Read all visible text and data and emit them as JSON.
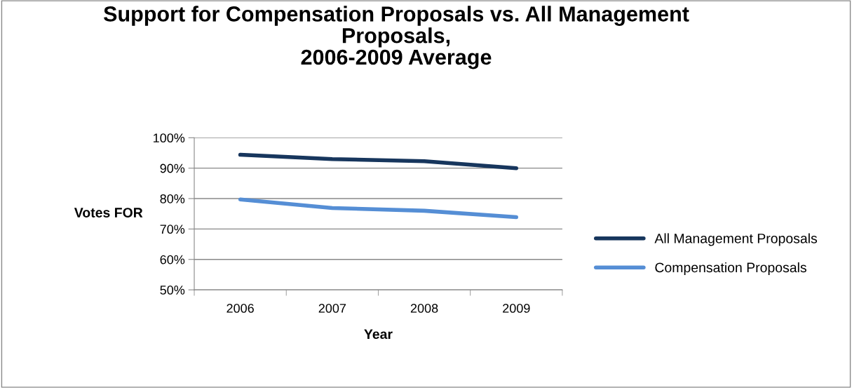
{
  "chart_data": {
    "type": "line",
    "title": "Support for Compensation Proposals vs. All Management\nProposals,\n2006-2009 Average",
    "xlabel": "Year",
    "ylabel": "Votes FOR",
    "categories": [
      "2006",
      "2007",
      "2008",
      "2009"
    ],
    "series": [
      {
        "name": "All Management Proposals",
        "color": "#17365d",
        "values": [
          94.4,
          93.0,
          92.3,
          90.0
        ]
      },
      {
        "name": "Compensation Proposals",
        "color": "#558ed5",
        "values": [
          79.7,
          76.9,
          76.0,
          73.9
        ]
      }
    ],
    "ylim": [
      50,
      100
    ],
    "yticks": [
      {
        "value": 50,
        "label": "50%"
      },
      {
        "value": 60,
        "label": "60%"
      },
      {
        "value": 70,
        "label": "70%"
      },
      {
        "value": 80,
        "label": "80%"
      },
      {
        "value": 90,
        "label": "90%"
      },
      {
        "value": 100,
        "label": "100%"
      }
    ],
    "grid": "y",
    "legend": "right",
    "marker": "none",
    "line_style": "solid"
  }
}
